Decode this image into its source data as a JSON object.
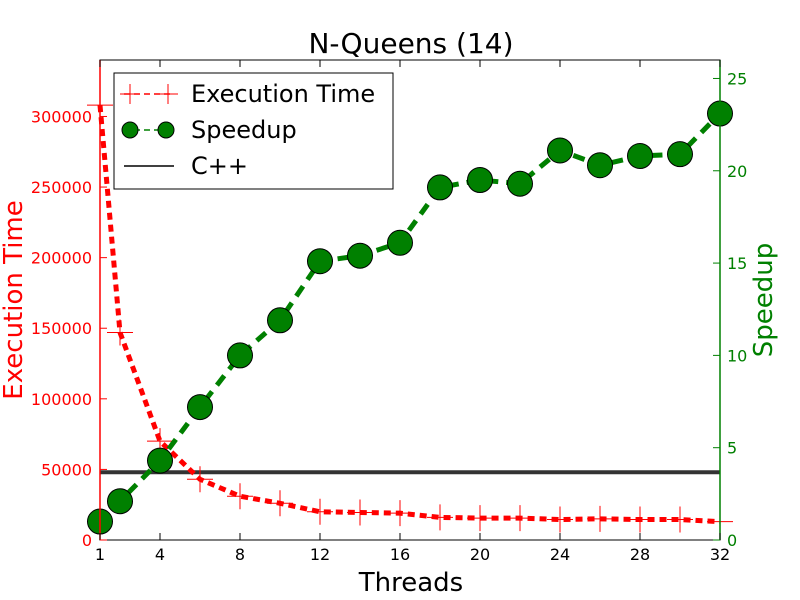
{
  "chart_data": {
    "type": "line",
    "title": "N-Queens (14)",
    "xlabel": "Threads",
    "ylabel_left": "Execution Time",
    "ylabel_right": "Speedup",
    "xlim": [
      1,
      32
    ],
    "ylim_left": [
      0,
      340000
    ],
    "ylim_right": [
      0,
      26
    ],
    "x_ticks": [
      1,
      4,
      8,
      12,
      16,
      20,
      24,
      28,
      32
    ],
    "y_ticks_left": [
      0,
      50000,
      100000,
      150000,
      200000,
      250000,
      300000
    ],
    "y_ticks_right": [
      0,
      5,
      10,
      15,
      20,
      25
    ],
    "grid": false,
    "legend_position": "top-left",
    "legend": [
      "Execution Time",
      "Speedup",
      "C++"
    ],
    "colors": {
      "execution_time": "#ff0000",
      "speedup": "#008000",
      "cpp": "#333333"
    },
    "series": [
      {
        "name": "Execution Time",
        "axis": "left",
        "x": [
          1,
          2,
          4,
          6,
          8,
          10,
          12,
          14,
          16,
          18,
          20,
          22,
          24,
          26,
          28,
          30,
          32
        ],
        "values": [
          308000,
          147000,
          70000,
          43000,
          31000,
          26000,
          20000,
          19500,
          19000,
          16000,
          15500,
          15500,
          14500,
          15000,
          14500,
          14500,
          13000
        ]
      },
      {
        "name": "Speedup",
        "axis": "right",
        "x": [
          1,
          2,
          4,
          6,
          8,
          10,
          12,
          14,
          16,
          18,
          20,
          22,
          24,
          26,
          28,
          30,
          32
        ],
        "values": [
          1.0,
          2.1,
          4.3,
          7.2,
          10.0,
          11.9,
          15.1,
          15.4,
          16.1,
          19.1,
          19.5,
          19.3,
          21.1,
          20.3,
          20.8,
          20.9,
          23.1
        ]
      },
      {
        "name": "C++",
        "axis": "left",
        "x": [
          1,
          32
        ],
        "values": [
          48000,
          48000
        ]
      }
    ]
  }
}
